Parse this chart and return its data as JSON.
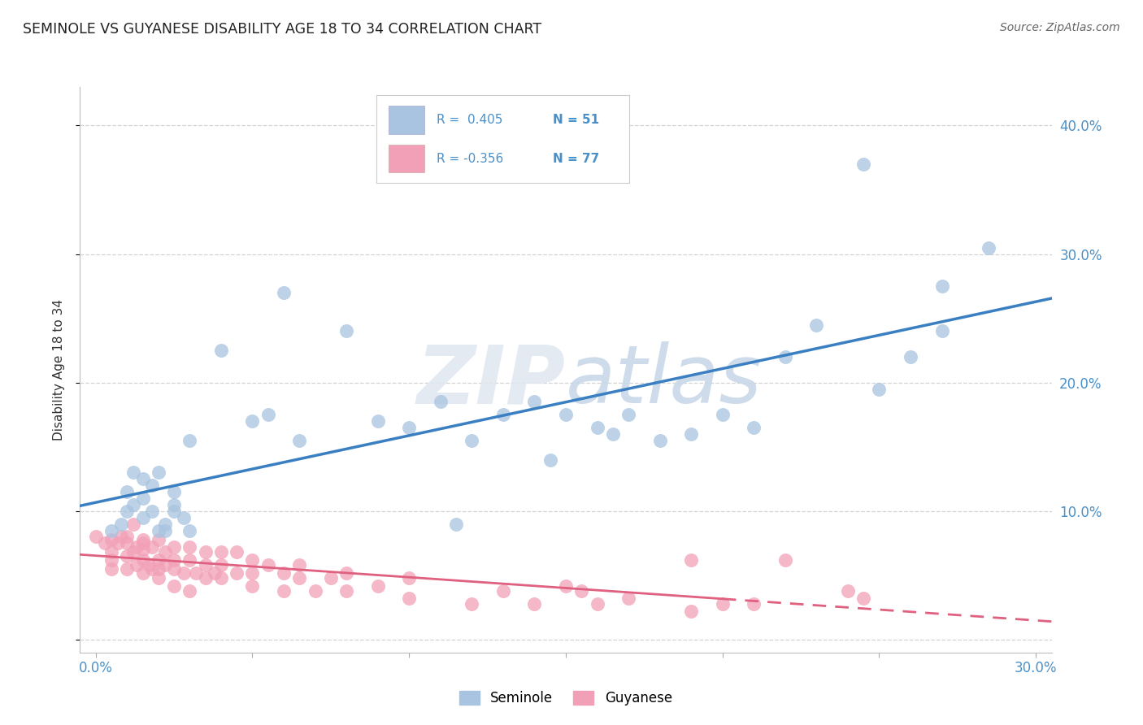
{
  "title": "SEMINOLE VS GUYANESE DISABILITY AGE 18 TO 34 CORRELATION CHART",
  "source": "Source: ZipAtlas.com",
  "ylabel": "Disability Age 18 to 34",
  "xlabel": "",
  "xlim": [
    -0.005,
    0.305
  ],
  "ylim": [
    -0.01,
    0.43
  ],
  "xticks": [
    0.0,
    0.05,
    0.1,
    0.15,
    0.2,
    0.25,
    0.3
  ],
  "yticks": [
    0.0,
    0.1,
    0.2,
    0.3,
    0.4
  ],
  "ytick_labels_right": [
    "",
    "10.0%",
    "20.0%",
    "30.0%",
    "40.0%"
  ],
  "xtick_labels": [
    "0.0%",
    "",
    "",
    "",
    "",
    "",
    "30.0%"
  ],
  "seminole_R": 0.405,
  "seminole_N": 51,
  "guyanese_R": -0.356,
  "guyanese_N": 77,
  "seminole_color": "#a8c4e0",
  "guyanese_color": "#f2a0b8",
  "seminole_line_color": "#3a7fc1",
  "guyanese_line_color": "#e06080",
  "watermark_color": "#e0e8f0",
  "background_color": "#ffffff",
  "grid_color": "#c8c8c8",
  "seminole_x": [
    0.005,
    0.008,
    0.01,
    0.01,
    0.012,
    0.012,
    0.015,
    0.015,
    0.015,
    0.018,
    0.018,
    0.02,
    0.02,
    0.022,
    0.022,
    0.025,
    0.025,
    0.025,
    0.028,
    0.03,
    0.03,
    0.04,
    0.05,
    0.055,
    0.06,
    0.065,
    0.08,
    0.09,
    0.1,
    0.11,
    0.115,
    0.12,
    0.13,
    0.14,
    0.145,
    0.15,
    0.16,
    0.165,
    0.17,
    0.18,
    0.19,
    0.2,
    0.21,
    0.22,
    0.23,
    0.245,
    0.25,
    0.26,
    0.27,
    0.27,
    0.285
  ],
  "seminole_y": [
    0.085,
    0.09,
    0.1,
    0.115,
    0.105,
    0.13,
    0.095,
    0.11,
    0.125,
    0.1,
    0.12,
    0.085,
    0.13,
    0.085,
    0.09,
    0.1,
    0.115,
    0.105,
    0.095,
    0.085,
    0.155,
    0.225,
    0.17,
    0.175,
    0.27,
    0.155,
    0.24,
    0.17,
    0.165,
    0.185,
    0.09,
    0.155,
    0.175,
    0.185,
    0.14,
    0.175,
    0.165,
    0.16,
    0.175,
    0.155,
    0.16,
    0.175,
    0.165,
    0.22,
    0.245,
    0.37,
    0.195,
    0.22,
    0.24,
    0.275,
    0.305
  ],
  "guyanese_x": [
    0.0,
    0.003,
    0.005,
    0.005,
    0.005,
    0.005,
    0.007,
    0.008,
    0.01,
    0.01,
    0.01,
    0.01,
    0.012,
    0.012,
    0.013,
    0.013,
    0.015,
    0.015,
    0.015,
    0.015,
    0.015,
    0.017,
    0.018,
    0.018,
    0.02,
    0.02,
    0.02,
    0.02,
    0.022,
    0.022,
    0.025,
    0.025,
    0.025,
    0.025,
    0.028,
    0.03,
    0.03,
    0.03,
    0.032,
    0.035,
    0.035,
    0.035,
    0.038,
    0.04,
    0.04,
    0.04,
    0.045,
    0.045,
    0.05,
    0.05,
    0.05,
    0.055,
    0.06,
    0.06,
    0.065,
    0.065,
    0.07,
    0.075,
    0.08,
    0.08,
    0.09,
    0.1,
    0.1,
    0.12,
    0.13,
    0.14,
    0.15,
    0.155,
    0.16,
    0.17,
    0.19,
    0.19,
    0.2,
    0.21,
    0.22,
    0.24,
    0.245
  ],
  "guyanese_y": [
    0.08,
    0.075,
    0.078,
    0.068,
    0.062,
    0.055,
    0.075,
    0.08,
    0.055,
    0.065,
    0.075,
    0.08,
    0.068,
    0.09,
    0.058,
    0.072,
    0.052,
    0.062,
    0.07,
    0.075,
    0.078,
    0.058,
    0.055,
    0.072,
    0.048,
    0.055,
    0.062,
    0.078,
    0.058,
    0.068,
    0.042,
    0.055,
    0.062,
    0.072,
    0.052,
    0.038,
    0.062,
    0.072,
    0.052,
    0.048,
    0.058,
    0.068,
    0.052,
    0.048,
    0.058,
    0.068,
    0.052,
    0.068,
    0.042,
    0.052,
    0.062,
    0.058,
    0.038,
    0.052,
    0.048,
    0.058,
    0.038,
    0.048,
    0.038,
    0.052,
    0.042,
    0.032,
    0.048,
    0.028,
    0.038,
    0.028,
    0.042,
    0.038,
    0.028,
    0.032,
    0.022,
    0.062,
    0.028,
    0.028,
    0.062,
    0.038,
    0.032
  ]
}
